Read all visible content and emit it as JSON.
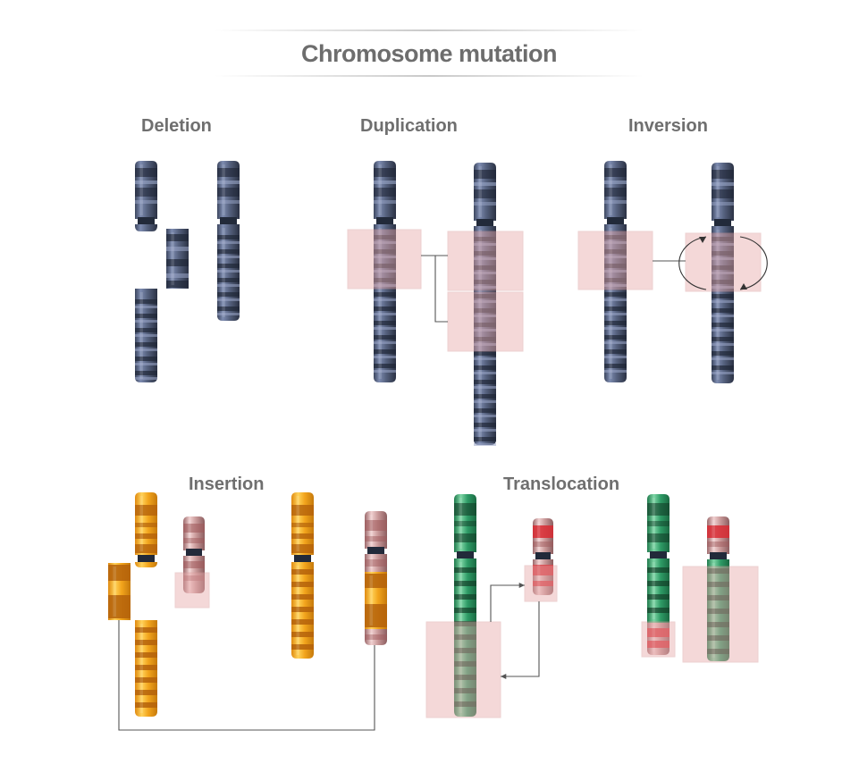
{
  "title": "Chromosome mutation",
  "labels": {
    "deletion": "Deletion",
    "duplication": "Duplication",
    "inversion": "Inversion",
    "insertion": "Insertion",
    "translocation": "Translocation"
  },
  "colors": {
    "blue_chromosome": "#56627f",
    "blue_band": "#1e2535",
    "blue_light_band": "#9aa6c8",
    "orange_chromosome": "#f2a41c",
    "orange_band": "#b4620a",
    "green_chromosome": "#2e9b66",
    "green_band": "#123e28",
    "pink_chromosome": "#c89898",
    "red_band": "#d82a32",
    "highlight_box": "#e8a9aa",
    "connector": "#555555"
  }
}
